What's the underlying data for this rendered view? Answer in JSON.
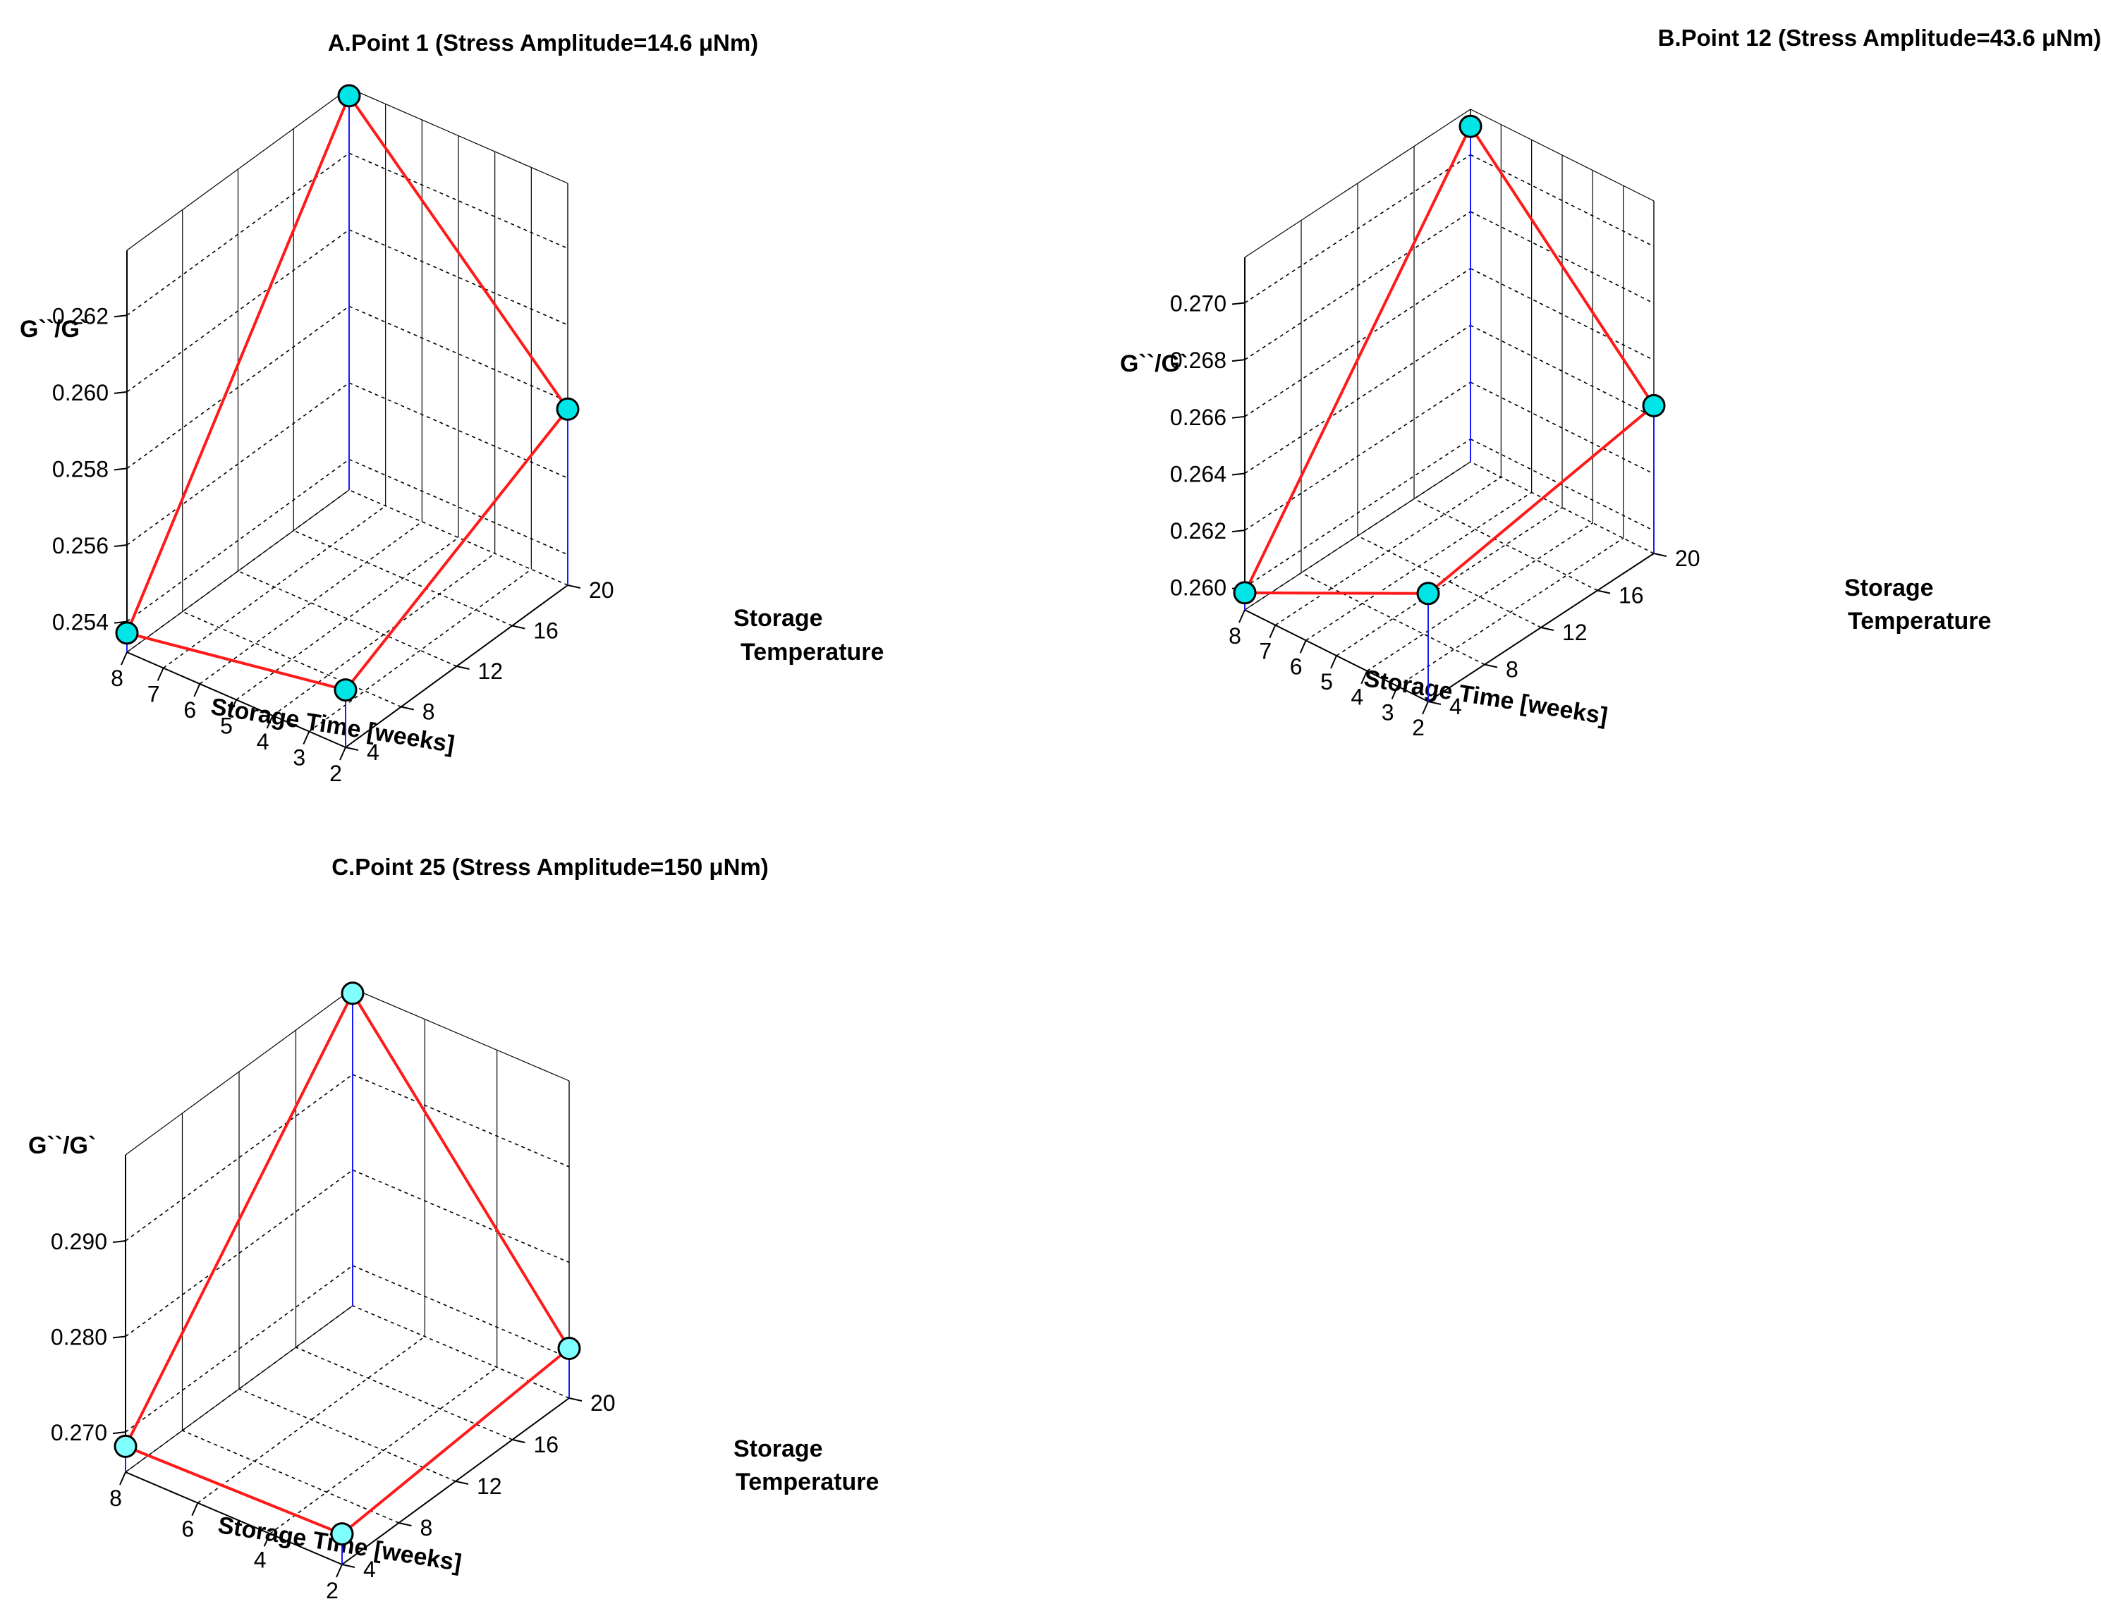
{
  "chart_data": [
    {
      "type": "scatter3d",
      "title": "A.Point 1 (Stress Amplitude=14.6 μNm)",
      "zlabel": "G``/G`",
      "xlabel": "Storage Time [weeks]",
      "ylabel_lines": [
        "Storage",
        "Temperature"
      ],
      "x_ticks": [
        "8",
        "7",
        "6",
        "5",
        "4",
        "3",
        "2"
      ],
      "y_ticks": [
        "4",
        "8",
        "12",
        "16",
        "20"
      ],
      "z_ticks": [
        "0.254",
        "0.256",
        "0.258",
        "0.260",
        "0.262"
      ],
      "points": [
        {
          "time": 8,
          "temperature": 4,
          "value": 0.2537
        },
        {
          "time": 8,
          "temperature": 20,
          "value": 0.2635
        },
        {
          "time": 2,
          "temperature": 20,
          "value": 0.2578
        },
        {
          "time": 2,
          "temperature": 4,
          "value": 0.2547
        }
      ],
      "line_order": [
        0,
        1,
        2,
        3,
        0
      ],
      "colors": {
        "line": "#ff1a1a",
        "marker": "#00e5e5",
        "drop": "#1a1aff"
      }
    },
    {
      "type": "scatter3d",
      "title": "B.Point 12 (Stress Amplitude=43.6 μNm)",
      "zlabel": "G``/G`",
      "xlabel": "Storage Time [weeks]",
      "ylabel_lines": [
        "Storage",
        "Temperature"
      ],
      "x_ticks": [
        "8",
        "7",
        "6",
        "5",
        "4",
        "3",
        "2"
      ],
      "y_ticks": [
        "4",
        "8",
        "12",
        "16",
        "20"
      ],
      "z_ticks": [
        "0.260",
        "0.262",
        "0.264",
        "0.266",
        "0.268",
        "0.270"
      ],
      "points": [
        {
          "time": 8,
          "temperature": 4,
          "value": 0.2598
        },
        {
          "time": 8,
          "temperature": 20,
          "value": 0.271
        },
        {
          "time": 2,
          "temperature": 20,
          "value": 0.2644
        },
        {
          "time": 2,
          "temperature": 4,
          "value": 0.263
        }
      ],
      "line_order": [
        0,
        1,
        2,
        3,
        0
      ],
      "colors": {
        "line": "#ff1a1a",
        "marker": "#00e5e5",
        "drop": "#1a1aff"
      }
    },
    {
      "type": "scatter3d",
      "title": "C.Point 25 (Stress Amplitude=150 μNm)",
      "zlabel": "G``/G`",
      "xlabel": "Storage Time [weeks]",
      "ylabel_lines": [
        "Storage",
        "Temperature"
      ],
      "x_ticks": [
        "8",
        "6",
        "4",
        "2"
      ],
      "y_ticks": [
        "4",
        "8",
        "12",
        "16",
        "20"
      ],
      "z_ticks": [
        "0.270",
        "0.280",
        "0.290"
      ],
      "points": [
        {
          "time": 8,
          "temperature": 4,
          "value": 0.2685
        },
        {
          "time": 8,
          "temperature": 20,
          "value": 0.2985
        },
        {
          "time": 2,
          "temperature": 20,
          "value": 0.271
        },
        {
          "time": 2,
          "temperature": 4,
          "value": 0.269
        }
      ],
      "line_order": [
        0,
        1,
        2,
        3,
        0
      ],
      "colors": {
        "line": "#ff1a1a",
        "marker": "#80ffff",
        "drop": "#1a1aff"
      }
    }
  ]
}
